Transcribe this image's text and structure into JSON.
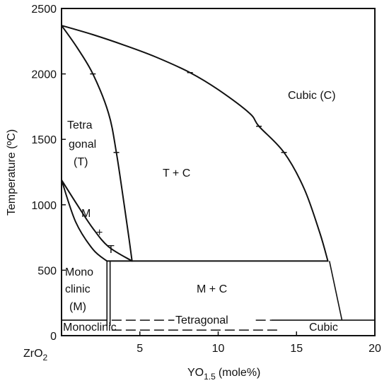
{
  "axes": {
    "x_title": "YO",
    "x_title_sub": "1.5",
    "x_title_unit": "(mole%)",
    "x_origin_label": "ZrO",
    "x_origin_sub": "2",
    "y_title": "Temperature (ºC)",
    "x_ticks": [
      "5",
      "10",
      "15",
      "20"
    ],
    "x_tick_values": [
      5,
      10,
      15,
      20
    ],
    "y_ticks": [
      "0",
      "500",
      "1000",
      "1500",
      "2000",
      "2500"
    ],
    "y_tick_values": [
      0,
      500,
      1000,
      1500,
      2000,
      2500
    ],
    "xlim": [
      0,
      20
    ],
    "ylim": [
      0,
      2500
    ]
  },
  "regions": {
    "cubic": "Cubic (C)",
    "tetra_1": "Tetra",
    "tetra_2": "gonal",
    "tetra_3": "(T)",
    "t_plus_c": "T + C",
    "m_t_1": "M",
    "m_t_2": "+",
    "m_t_3": "T",
    "mono_1": "Mono",
    "mono_2": "clinic",
    "mono_3": "(M)",
    "m_plus_c": "M + C",
    "monoclinic_low": "Monoclinic",
    "tetragonal_low": "Tetragonal",
    "cubic_low": "Cubic"
  },
  "boundaries": {
    "cubic_liquidus": [
      [
        0,
        2370
      ],
      [
        2,
        2300
      ],
      [
        4,
        2220
      ],
      [
        6,
        2130
      ],
      [
        8.2,
        2010
      ],
      [
        10,
        1880
      ],
      [
        12,
        1700
      ],
      [
        12.6,
        1600
      ],
      [
        14.2,
        1400
      ],
      [
        15.5,
        1120
      ],
      [
        16.5,
        780
      ],
      [
        17,
        570
      ]
    ],
    "t_tc_boundary": [
      [
        0,
        2370
      ],
      [
        1,
        2200
      ],
      [
        2,
        2000
      ],
      [
        3,
        1700
      ],
      [
        3.5,
        1400
      ],
      [
        4,
        1000
      ],
      [
        4.3,
        750
      ],
      [
        4.5,
        570
      ]
    ],
    "m_t_upper": [
      [
        0,
        1190
      ],
      [
        1,
        1000
      ],
      [
        2,
        820
      ],
      [
        3,
        680
      ],
      [
        4.5,
        570
      ]
    ],
    "m_t_lower": [
      [
        0,
        1190
      ],
      [
        0.9,
        870
      ],
      [
        2,
        660
      ],
      [
        2.9,
        570
      ]
    ],
    "eutectoid_temperature": 570,
    "low_temperature_line": 140
  },
  "tick_marks": [
    [
      2,
      2000
    ],
    [
      3.5,
      1400
    ],
    [
      8.2,
      2010
    ],
    [
      12.6,
      1600
    ],
    [
      14.2,
      1400
    ]
  ]
}
